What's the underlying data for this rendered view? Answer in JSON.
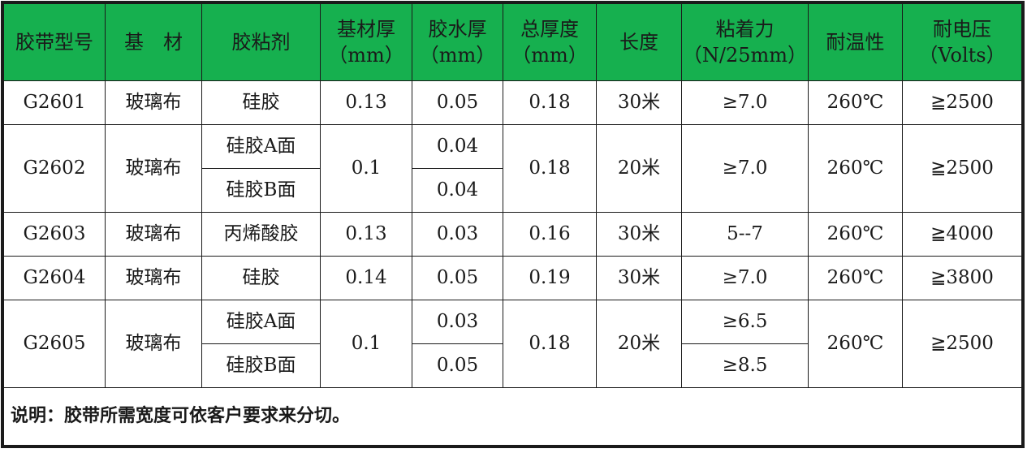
{
  "headers": [
    {
      "line1": "胶带型号",
      "line2": ""
    },
    {
      "line1": "基　材",
      "line2": ""
    },
    {
      "line1": "胶粘剂",
      "line2": ""
    },
    {
      "line1": "基材厚",
      "line2": "（mm）"
    },
    {
      "line1": "胶水厚",
      "line2": "（mm）"
    },
    {
      "line1": "总厚度",
      "line2": "（mm）"
    },
    {
      "line1": "长度",
      "line2": ""
    },
    {
      "line1": "粘着力",
      "line2": "（N/25mm）"
    },
    {
      "line1": "耐温性",
      "line2": ""
    },
    {
      "line1": "耐电压",
      "line2": "（Volts）"
    }
  ],
  "products": [
    {
      "model": "G2601",
      "substrate": "玻璃布",
      "adhesive": [
        "硅胶"
      ],
      "substrate_thickness": "0.13",
      "glue_thickness": [
        "0.05"
      ],
      "total_thickness": "0.18",
      "length": "30米",
      "adhesion": [
        "≥7.0"
      ],
      "temperature": "260℃",
      "voltage": "≧2500"
    },
    {
      "model": "G2602",
      "substrate": "玻璃布",
      "adhesive": [
        "硅胶A面",
        "硅胶B面"
      ],
      "substrate_thickness": "0.1",
      "glue_thickness": [
        "0.04",
        "0.04"
      ],
      "total_thickness": "0.18",
      "length": "20米",
      "adhesion": [
        "≥7.0"
      ],
      "temperature": "260℃",
      "voltage": "≧2500"
    },
    {
      "model": "G2603",
      "substrate": "玻璃布",
      "adhesive": [
        "丙烯酸胶"
      ],
      "substrate_thickness": "0.13",
      "glue_thickness": [
        "0.03"
      ],
      "total_thickness": "0.16",
      "length": "30米",
      "adhesion": [
        "5--7"
      ],
      "temperature": "260℃",
      "voltage": "≧4000"
    },
    {
      "model": "G2604",
      "substrate": "玻璃布",
      "adhesive": [
        "硅胶"
      ],
      "substrate_thickness": "0.14",
      "glue_thickness": [
        "0.05"
      ],
      "total_thickness": "0.19",
      "length": "30米",
      "adhesion": [
        "≥7.0"
      ],
      "temperature": "260℃",
      "voltage": "≧3800"
    },
    {
      "model": "G2605",
      "substrate": "玻璃布",
      "adhesive": [
        "硅胶A面",
        "硅胶B面"
      ],
      "substrate_thickness": "0.1",
      "glue_thickness": [
        "0.03",
        "0.05"
      ],
      "total_thickness": "0.18",
      "length": "20米",
      "adhesion": [
        "≥6.5",
        "≥8.5"
      ],
      "temperature": "260℃",
      "voltage": "≧2500"
    }
  ],
  "note": "说明：胶带所需宽度可依客户要求来分切。",
  "colors": {
    "header_bg": "#16b04f",
    "border": "#1a1a1a"
  }
}
